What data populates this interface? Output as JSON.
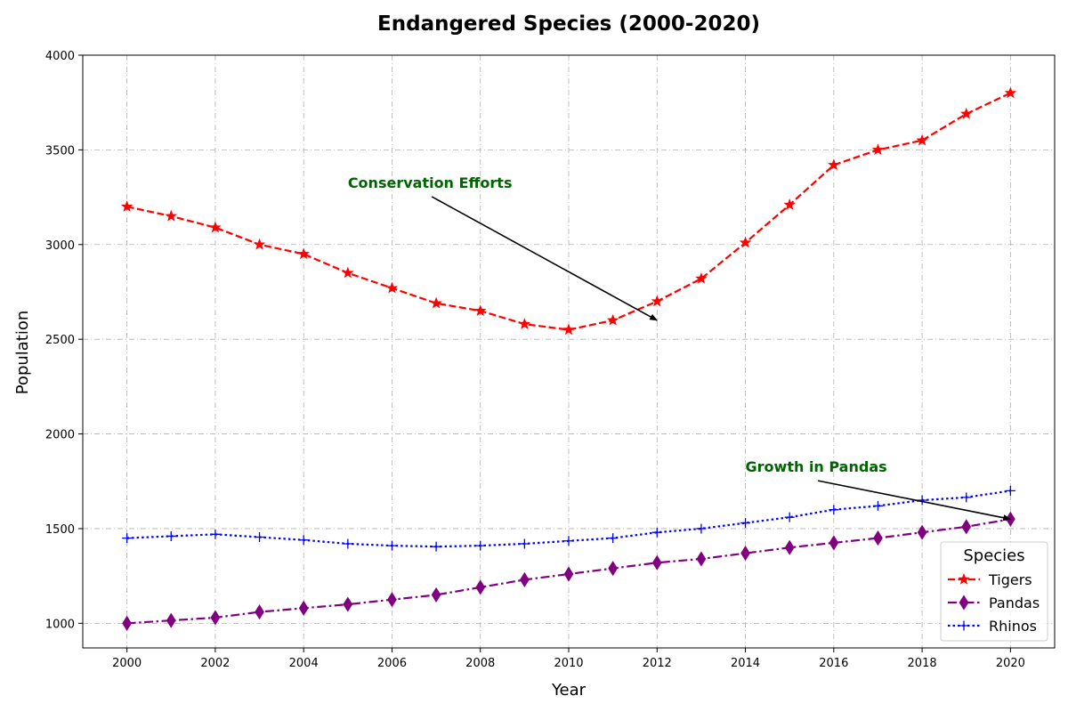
{
  "chart_data": {
    "type": "line",
    "title": "Endangered Species (2000-2020)",
    "xlabel": "Year",
    "ylabel": "Population",
    "x": [
      2000,
      2001,
      2002,
      2003,
      2004,
      2005,
      2006,
      2007,
      2008,
      2009,
      2010,
      2011,
      2012,
      2013,
      2014,
      2015,
      2016,
      2017,
      2018,
      2019,
      2020
    ],
    "xlim": [
      1999,
      2021
    ],
    "ylim": [
      870,
      4000
    ],
    "xticks": [
      2000,
      2002,
      2004,
      2006,
      2008,
      2010,
      2012,
      2014,
      2016,
      2018,
      2020
    ],
    "yticks": [
      1000,
      1500,
      2000,
      2500,
      3000,
      3500,
      4000
    ],
    "grid": true,
    "legend": {
      "title": "Species",
      "placement": "lower-right"
    },
    "series": [
      {
        "name": "Tigers",
        "color": "#ff0000",
        "linestyle": "dashed",
        "marker": "star",
        "values": [
          3200,
          3150,
          3090,
          3000,
          2950,
          2850,
          2770,
          2690,
          2650,
          2580,
          2550,
          2600,
          2700,
          2820,
          3010,
          3210,
          3420,
          3500,
          3550,
          3690,
          3800
        ]
      },
      {
        "name": "Pandas",
        "color": "#800080",
        "linestyle": "dashdot",
        "marker": "thin-diamond",
        "values": [
          1000,
          1015,
          1030,
          1060,
          1080,
          1100,
          1125,
          1150,
          1190,
          1230,
          1260,
          1290,
          1320,
          1340,
          1370,
          1400,
          1425,
          1450,
          1480,
          1510,
          1550
        ]
      },
      {
        "name": "Rhinos",
        "color": "#0000ff",
        "linestyle": "dotted",
        "marker": "plus",
        "values": [
          1450,
          1460,
          1470,
          1455,
          1440,
          1420,
          1410,
          1405,
          1410,
          1420,
          1435,
          1450,
          1480,
          1500,
          1530,
          1560,
          1600,
          1620,
          1650,
          1665,
          1700
        ]
      }
    ],
    "annotations": [
      {
        "text": "Conservation Efforts",
        "text_x": 2005,
        "text_y": 3300,
        "target_x": 2012,
        "target_y": 2600,
        "color": "#006400"
      },
      {
        "text": "Growth in Pandas",
        "text_x": 2014,
        "text_y": 1800,
        "target_x": 2020,
        "target_y": 1550,
        "color": "#006400"
      }
    ]
  }
}
